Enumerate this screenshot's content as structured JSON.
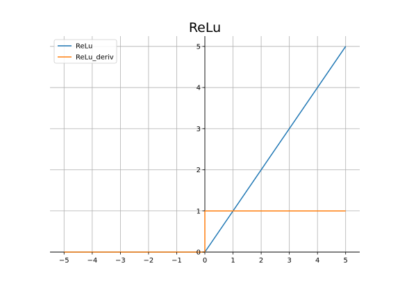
{
  "chart_data": {
    "type": "line",
    "title": "ReLu",
    "xlabel": "",
    "ylabel": "",
    "xlim": [
      -5.5,
      5.5
    ],
    "ylim": [
      0,
      5.25
    ],
    "xticks": [
      -5,
      -4,
      -3,
      -2,
      -1,
      0,
      1,
      2,
      3,
      4,
      5
    ],
    "xtick_labels": [
      "−5",
      "−4",
      "−3",
      "−2",
      "−1",
      "0",
      "1",
      "2",
      "3",
      "4",
      "5"
    ],
    "yticks": [
      0,
      1,
      2,
      3,
      4,
      5
    ],
    "ytick_labels": [
      "0",
      "1",
      "2",
      "3",
      "4",
      "5"
    ],
    "grid": true,
    "spines": "centered at origin (left spine at x=0, bottom spine at y=0)",
    "legend_position": "top-left",
    "series": [
      {
        "name": "ReLu",
        "color": "#1f77b4",
        "x": [
          -5,
          0,
          5
        ],
        "y": [
          0,
          0,
          5
        ]
      },
      {
        "name": "ReLu_deriv",
        "color": "#ff7f0e",
        "x": [
          -5,
          0,
          0,
          5
        ],
        "y": [
          0,
          0,
          1,
          1
        ]
      }
    ]
  }
}
